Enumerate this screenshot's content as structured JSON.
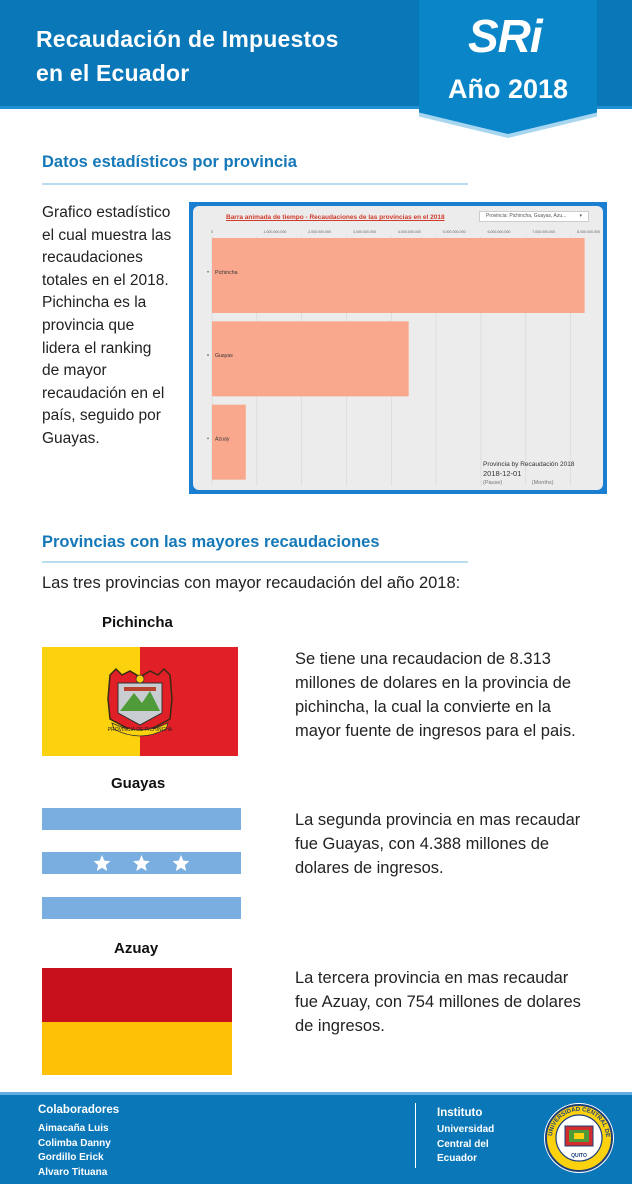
{
  "header": {
    "title_line1": "Recaudación de Impuestos",
    "title_line2": "en el Ecuador",
    "logo_text": "SRi",
    "year_label": "Año 2018"
  },
  "section1": {
    "title": "Datos estadísticos por provincia",
    "description_p1": "Grafico estadístico el cual muestra las recaudaciones totales en el 2018.",
    "description_p2": "Pichincha es la provincia que lidera el ranking de mayor recaudación en el país, seguido por Guayas."
  },
  "chart_data": {
    "type": "bar",
    "orientation": "horizontal",
    "title": "Barra animada de tiempo - Recaudaciones de las provincias en el 2018",
    "filter_label": "Provincia: Pichincha, Guayas, Azu...",
    "categories": [
      "Pichincha",
      "Guayas",
      "Azuay"
    ],
    "values": [
      8313000000,
      4388000000,
      754000000
    ],
    "xlim": [
      0,
      8500000000
    ],
    "ticks": [
      {
        "value": 0,
        "label": "0"
      },
      {
        "value": 1000000000,
        "label": "1.000.000.000"
      },
      {
        "value": 2000000000,
        "label": "2.000.000.000"
      },
      {
        "value": 3000000000,
        "label": "3.000.000.000"
      },
      {
        "value": 4000000000,
        "label": "4.000.000.000"
      },
      {
        "value": 5000000000,
        "label": "5.000.000.000"
      },
      {
        "value": 6000000000,
        "label": "6.000.000.000"
      },
      {
        "value": 7000000000,
        "label": "7.000.000.000"
      },
      {
        "value": 8000000000,
        "label": "8.000.000.000"
      }
    ],
    "bar_color": "#f9a88e",
    "legend": {
      "caption": "Provincia by Recaudación 2018",
      "date": "2018-12-01",
      "pause_label": "(Pause)",
      "unit_label": "(Months)"
    }
  },
  "section2": {
    "title": "Provincias con las mayores recaudaciones",
    "intro": "Las tres provincias con mayor recaudación del año 2018:"
  },
  "provinces": [
    {
      "name": "Pichincha",
      "text": "Se tiene una recaudacion de 8.313 millones de dolares en la provincia de pichincha, la cual la convierte en la mayor fuente de ingresos para el pais.",
      "flag_colors": [
        "#fcd20f",
        "#e01f26"
      ],
      "emblem_label": "PROVINCIA DE PICHINCHA"
    },
    {
      "name": "Guayas",
      "text": "La segunda provincia en mas recaudar fue Guayas, con  4.388 millones de dolares de ingresos.",
      "flag_colors": [
        "#7aaee0",
        "#ffffff"
      ]
    },
    {
      "name": "Azuay",
      "text": "La tercera provincia en mas recaudar fue Azuay, con  754 millones de dolares de ingresos.",
      "flag_colors": [
        "#c8101c",
        "#ffc106"
      ]
    }
  ],
  "footer": {
    "collab_title": "Colaboradores",
    "collaborators": [
      "Aimacaña Luis",
      "Colimba Danny",
      "Gordillo Erick",
      "Alvaro Tituana"
    ],
    "institute_title": "Instituto",
    "institute_lines": [
      "Universidad",
      "Central del",
      "Ecuador"
    ],
    "seal_text": "UNIVERSIDAD CENTRAL DEL ECUADOR",
    "seal_city": "QUITO"
  },
  "colors": {
    "brand_blue": "#0a77b8",
    "heading_blue": "#1578b8",
    "rule": "#b9dcef"
  }
}
